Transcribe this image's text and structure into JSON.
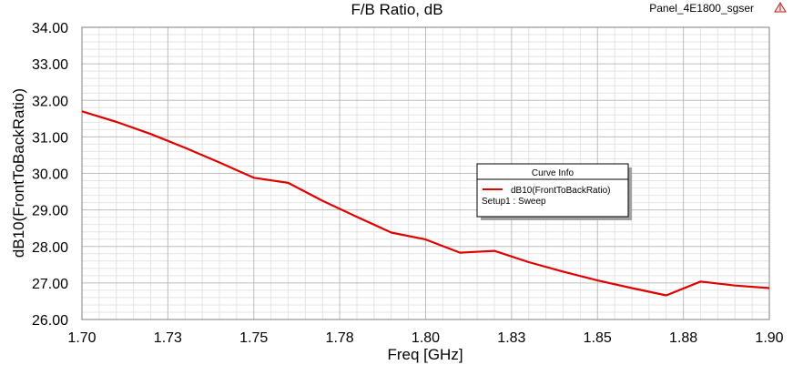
{
  "header": {
    "project_name": "Panel_4E1800_sgser",
    "logo_icon": "ansys-logo-icon"
  },
  "chart_data": {
    "type": "line",
    "title": "F/B Ratio, dB",
    "xlabel": "Freq [GHz]",
    "ylabel": "dB10(FrontToBackRatio)",
    "xlim": [
      1.7,
      1.9
    ],
    "ylim": [
      26.0,
      34.0
    ],
    "x_ticks": [
      "1.70",
      "1.73",
      "1.75",
      "1.78",
      "1.80",
      "1.83",
      "1.85",
      "1.88",
      "1.90"
    ],
    "y_ticks": [
      "26.00",
      "27.00",
      "28.00",
      "29.00",
      "30.00",
      "31.00",
      "32.00",
      "33.00",
      "34.00"
    ],
    "grid": true,
    "series": [
      {
        "name": "dB10(FrontToBackRatio)",
        "color": "#e00000",
        "x": [
          1.7,
          1.71,
          1.72,
          1.73,
          1.74,
          1.75,
          1.76,
          1.77,
          1.78,
          1.79,
          1.8,
          1.81,
          1.82,
          1.83,
          1.84,
          1.85,
          1.86,
          1.87,
          1.88,
          1.89,
          1.9
        ],
        "y": [
          31.7,
          31.41,
          31.08,
          30.7,
          30.3,
          29.88,
          29.74,
          29.25,
          28.81,
          28.38,
          28.19,
          27.83,
          27.88,
          27.57,
          27.31,
          27.07,
          26.86,
          26.66,
          27.04,
          26.93,
          26.86
        ]
      }
    ],
    "legend": {
      "title": "Curve Info",
      "entries": [
        "dB10(FrontToBackRatio)"
      ],
      "setup": "Setup1 : Sweep",
      "position": "center-right"
    }
  }
}
